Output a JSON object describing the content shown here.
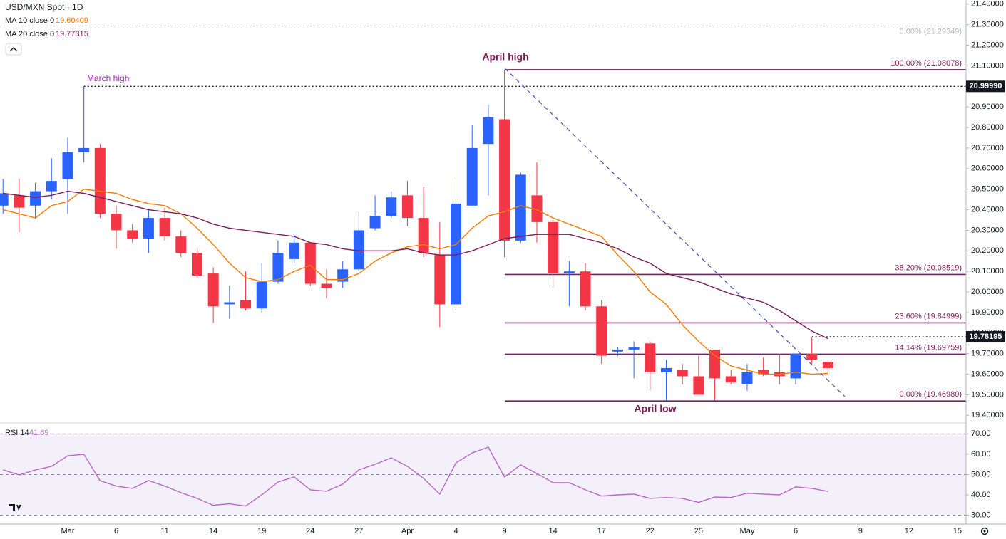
{
  "chart_data": [
    {
      "type": "candlestick",
      "title": "USD/MXN Spot · 1D",
      "categories": [
        null,
        null,
        null,
        null,
        "Mar",
        null,
        null,
        "6",
        null,
        null,
        "11",
        null,
        null,
        "14",
        null,
        null,
        "19",
        null,
        null,
        "24",
        null,
        null,
        "27",
        null,
        null,
        "Apr",
        null,
        null,
        "4",
        null,
        null,
        "9",
        null,
        null,
        "14",
        null,
        null,
        "17",
        null,
        null,
        "22",
        null,
        null,
        "25",
        null,
        null,
        "May",
        null,
        null,
        "6",
        null,
        null,
        null,
        "9",
        null,
        null,
        "12",
        null,
        null,
        "15"
      ],
      "open": [
        20.42,
        20.47,
        20.42,
        20.49,
        20.55,
        20.68,
        20.7,
        20.38,
        20.3,
        20.26,
        20.36,
        20.27,
        20.19,
        20.09,
        19.94,
        19.96,
        19.92,
        20.05,
        20.16,
        20.24,
        20.04,
        20.05,
        20.11,
        20.31,
        20.37,
        20.47,
        20.36,
        20.18,
        19.94,
        20.42,
        20.72,
        20.84,
        20.25,
        20.47,
        20.34,
        20.09,
        20.1,
        19.93,
        19.71,
        19.72,
        19.75,
        19.61,
        19.62,
        19.59,
        19.72,
        19.59,
        19.55,
        19.62,
        19.61,
        19.58,
        19.7,
        19.66,
        null,
        null,
        null,
        null,
        null,
        null,
        null,
        null
      ],
      "high": [
        20.55,
        20.55,
        20.53,
        20.65,
        20.75,
        20.9999,
        20.72,
        20.42,
        20.33,
        20.4,
        20.41,
        20.3,
        20.21,
        20.12,
        20.03,
        20.1,
        20.14,
        20.25,
        20.28,
        20.24,
        20.11,
        20.15,
        20.39,
        20.47,
        20.49,
        20.54,
        20.51,
        20.34,
        20.56,
        20.81,
        20.91,
        21.08078,
        20.58,
        20.63,
        20.35,
        20.15,
        20.14,
        19.96,
        19.73,
        19.76,
        19.76,
        19.67,
        19.65,
        19.69,
        19.72,
        19.62,
        19.65,
        19.68,
        19.7,
        19.7,
        19.78,
        19.67,
        null,
        null,
        null,
        null,
        null,
        null,
        null,
        null
      ],
      "low": [
        20.38,
        20.29,
        20.36,
        20.45,
        20.38,
        20.63,
        20.36,
        20.21,
        20.24,
        20.19,
        20.25,
        20.17,
        20.07,
        19.85,
        19.87,
        19.91,
        19.9,
        20.04,
        20.14,
        20.03,
        19.97,
        20.02,
        20.1,
        20.3,
        20.36,
        20.32,
        20.17,
        19.83,
        19.91,
        20.42,
        20.47,
        20.17,
        20.24,
        20.24,
        20.02,
        19.93,
        19.91,
        19.65,
        19.69,
        19.58,
        19.52,
        19.4698,
        19.55,
        19.5,
        19.47,
        19.55,
        19.52,
        19.59,
        19.55,
        19.55,
        19.65,
        19.61,
        null,
        null,
        null,
        null,
        null,
        null,
        null,
        null
      ],
      "close": [
        20.48,
        20.41,
        20.49,
        20.54,
        20.68,
        20.7,
        20.38,
        20.3,
        20.26,
        20.36,
        20.27,
        20.19,
        20.08,
        19.93,
        19.95,
        19.92,
        20.05,
        20.19,
        20.24,
        20.04,
        20.02,
        20.11,
        20.3,
        20.37,
        20.46,
        20.36,
        20.19,
        19.94,
        20.43,
        20.7,
        20.85,
        20.25,
        20.57,
        20.34,
        20.09,
        20.1,
        19.93,
        19.69,
        19.72,
        19.73,
        19.61,
        19.63,
        19.59,
        19.5,
        19.58,
        19.56,
        19.61,
        19.6,
        19.59,
        19.7,
        19.67,
        19.63,
        null,
        null,
        null,
        null,
        null,
        null,
        null,
        null
      ],
      "up_color": "#2962ff",
      "down_color": "#f23645",
      "series": [
        {
          "name": "MA 10 close 0",
          "color": "#f57c00",
          "values": [
            20.4,
            20.38,
            20.36,
            20.42,
            20.44,
            20.5,
            20.49,
            20.48,
            20.45,
            20.43,
            20.42,
            20.38,
            20.31,
            20.23,
            20.14,
            20.07,
            20.05,
            20.06,
            20.1,
            20.13,
            20.06,
            20.06,
            20.09,
            20.15,
            20.19,
            20.22,
            20.23,
            20.21,
            20.23,
            20.31,
            20.37,
            20.39,
            20.42,
            20.4,
            20.36,
            20.33,
            20.3,
            20.27,
            20.18,
            20.1,
            20.0,
            19.94,
            19.84,
            19.76,
            19.69,
            19.64,
            19.62,
            19.6,
            19.6,
            19.61,
            19.6,
            19.60409,
            null,
            null,
            null,
            null,
            null,
            null,
            null,
            null
          ]
        },
        {
          "name": "MA 20 close 0",
          "color": "#7b1f5c",
          "values": [
            20.48,
            20.47,
            20.46,
            20.47,
            20.49,
            20.48,
            20.46,
            20.44,
            20.42,
            20.4,
            20.39,
            20.38,
            20.36,
            20.33,
            20.31,
            20.3,
            20.29,
            20.28,
            20.27,
            20.24,
            20.23,
            20.21,
            20.2,
            20.2,
            20.2,
            20.21,
            20.19,
            20.18,
            20.18,
            20.2,
            20.23,
            20.26,
            20.27,
            20.28,
            20.28,
            20.28,
            20.26,
            20.24,
            20.21,
            20.17,
            20.14,
            20.09,
            20.07,
            20.05,
            20.02,
            19.99,
            19.97,
            19.95,
            19.91,
            19.86,
            19.81,
            19.77315,
            null,
            null,
            null,
            null,
            null,
            null,
            null,
            null
          ]
        }
      ],
      "ylim": [
        19.37,
        21.42
      ],
      "yticks": [
        {
          "value": 19.4,
          "label": "19.40000"
        },
        {
          "value": 19.5,
          "label": "19.50000"
        },
        {
          "value": 19.6,
          "label": "19.60000"
        },
        {
          "value": 19.7,
          "label": "19.70000"
        },
        {
          "value": 19.8,
          "label": "19.80000"
        },
        {
          "value": 19.9,
          "label": "19.90000"
        },
        {
          "value": 20.0,
          "label": "20.00000"
        },
        {
          "value": 20.1,
          "label": "20.10000"
        },
        {
          "value": 20.2,
          "label": "20.20000"
        },
        {
          "value": 20.3,
          "label": "20.30000"
        },
        {
          "value": 20.4,
          "label": "20.40000"
        },
        {
          "value": 20.5,
          "label": "20.50000"
        },
        {
          "value": 20.6,
          "label": "20.60000"
        },
        {
          "value": 20.7,
          "label": "20.70000"
        },
        {
          "value": 20.8,
          "label": "20.80000"
        },
        {
          "value": 20.9,
          "label": "20.90000"
        },
        {
          "value": 21.0,
          "label": "21.00000"
        },
        {
          "value": 21.1,
          "label": "21.10000"
        },
        {
          "value": 21.2,
          "label": "21.20000"
        },
        {
          "value": 21.3,
          "label": "21.30000"
        },
        {
          "value": 21.4,
          "label": "21.40000"
        }
      ],
      "fib_levels": [
        {
          "label": "0.00% (21.29349)",
          "value": 21.29349,
          "color": "#b2b5be"
        },
        {
          "label": "100.00% (21.08078)",
          "value": 21.08078,
          "color": "#7b1f5c"
        },
        {
          "label": "38.20% (20.08519)",
          "value": 20.08519,
          "color": "#7b1f5c"
        },
        {
          "label": "23.60% (19.84999)",
          "value": 19.84999,
          "color": "#7b1f5c"
        },
        {
          "label": "14.14% (19.69759)",
          "value": 19.69759,
          "color": "#7b1f5c"
        },
        {
          "label": "0.00% (19.46980)",
          "value": 19.4698,
          "color": "#7b1f5c"
        }
      ],
      "march_high": {
        "value": 20.9999,
        "label": "20.99990"
      },
      "price_line": {
        "value": 19.78195,
        "label": "19.78195"
      },
      "annotations": {
        "march_high": "March high",
        "april_high": "April high",
        "april_low": "April low"
      }
    },
    {
      "type": "line",
      "title": "RSI 14",
      "series": [
        {
          "name": "RSI 14",
          "color": "#ba68c8",
          "values": [
            52.3,
            49.8,
            52.3,
            54,
            59.2,
            59.9,
            47,
            44.3,
            43.2,
            47,
            44.3,
            41.1,
            38.3,
            34.9,
            35.6,
            34.5,
            40,
            46.3,
            48.8,
            42.5,
            41.8,
            45.3,
            52.3,
            55,
            58.2,
            54,
            48.1,
            40.4,
            55.7,
            60.6,
            63.4,
            48.8,
            54.7,
            50.5,
            46,
            46,
            42.5,
            39.4,
            40,
            40.4,
            38.3,
            38.7,
            38.3,
            36.3,
            39,
            38.7,
            40.8,
            40.4,
            40,
            43.9,
            43.2,
            41.69,
            null,
            null,
            null,
            null,
            null,
            null,
            null,
            null
          ]
        }
      ],
      "ylim": [
        26,
        75
      ],
      "yticks": [
        {
          "value": 30,
          "label": "30.00"
        },
        {
          "value": 40,
          "label": "40.00"
        },
        {
          "value": 50,
          "label": "50.00"
        },
        {
          "value": 60,
          "label": "60.00"
        },
        {
          "value": 70,
          "label": "70.00"
        }
      ],
      "guide_lines": [
        30,
        50,
        70
      ]
    }
  ]
}
